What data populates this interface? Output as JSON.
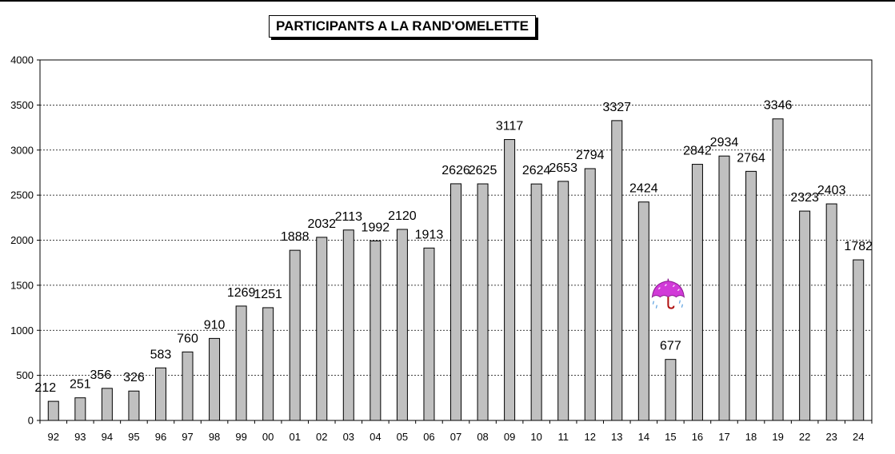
{
  "chart_data": {
    "type": "bar",
    "title": "PARTICIPANTS A LA RAND'OMELETTE",
    "xlabel": "",
    "ylabel": "",
    "categories": [
      "92",
      "93",
      "94",
      "95",
      "96",
      "97",
      "98",
      "99",
      "00",
      "01",
      "02",
      "03",
      "04",
      "05",
      "06",
      "07",
      "08",
      "09",
      "10",
      "11",
      "12",
      "13",
      "14",
      "15",
      "16",
      "17",
      "18",
      "19",
      "22",
      "23",
      "24"
    ],
    "values": [
      212,
      251,
      356,
      326,
      583,
      760,
      910,
      1269,
      1251,
      1888,
      2032,
      2113,
      1992,
      2120,
      1913,
      2626,
      2625,
      3117,
      2624,
      2653,
      2794,
      3327,
      2424,
      677,
      2842,
      2934,
      2764,
      3346,
      2323,
      2403,
      1782
    ],
    "ylim": [
      0,
      4000
    ],
    "yticks": [
      0,
      500,
      1000,
      1500,
      2000,
      2500,
      3000,
      3500,
      4000
    ],
    "grid": true,
    "bar_color": "#c0c0c0",
    "annotations": [
      {
        "category": "15",
        "icon": "umbrella-rain-icon"
      }
    ]
  }
}
